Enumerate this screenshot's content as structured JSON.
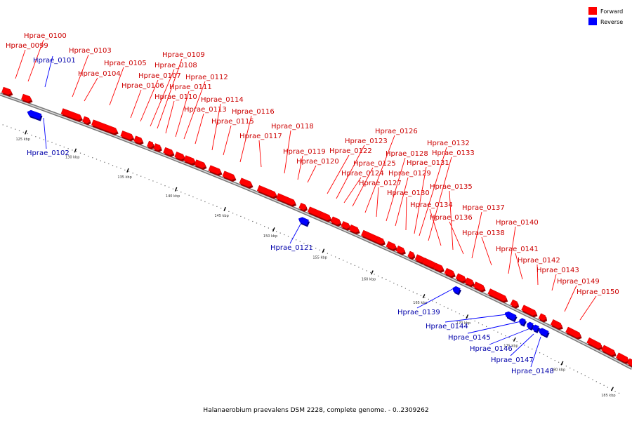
{
  "caption": "Halanaerobium praevalens DSM 2228, complete genome. - 0..2309262",
  "legend": [
    {
      "label": "Forward",
      "color": "#ff0000"
    },
    {
      "label": "Reverse",
      "color": "#0000ff"
    }
  ],
  "colors": {
    "forward": "#ff0000",
    "reverse": "#0000ff",
    "forward_text": "#cc0000",
    "reverse_text": "#0000aa"
  },
  "axis_ticks": [
    "125 kbp",
    "130 kbp",
    "135 kbp",
    "140 kbp",
    "145 kbp",
    "150 kbp",
    "155 kbp",
    "160 kbp",
    "165 kbp",
    "170 kbp",
    "175 kbp",
    "180 kbp",
    "185 kbp"
  ],
  "genes": [
    {
      "name": "Hprae_0099",
      "strand": "forward"
    },
    {
      "name": "Hprae_0100",
      "strand": "forward"
    },
    {
      "name": "Hprae_0101",
      "strand": "reverse"
    },
    {
      "name": "Hprae_0102",
      "strand": "reverse"
    },
    {
      "name": "Hprae_0103",
      "strand": "forward"
    },
    {
      "name": "Hprae_0104",
      "strand": "forward"
    },
    {
      "name": "Hprae_0105",
      "strand": "forward"
    },
    {
      "name": "Hprae_0106",
      "strand": "forward"
    },
    {
      "name": "Hprae_0107",
      "strand": "forward"
    },
    {
      "name": "Hprae_0108",
      "strand": "forward"
    },
    {
      "name": "Hprae_0109",
      "strand": "forward"
    },
    {
      "name": "Hprae_0110",
      "strand": "forward"
    },
    {
      "name": "Hprae_0111",
      "strand": "forward"
    },
    {
      "name": "Hprae_0112",
      "strand": "forward"
    },
    {
      "name": "Hprae_0113",
      "strand": "forward"
    },
    {
      "name": "Hprae_0114",
      "strand": "forward"
    },
    {
      "name": "Hprae_0115",
      "strand": "forward"
    },
    {
      "name": "Hprae_0116",
      "strand": "forward"
    },
    {
      "name": "Hprae_0117",
      "strand": "forward"
    },
    {
      "name": "Hprae_0118",
      "strand": "forward"
    },
    {
      "name": "Hprae_0119",
      "strand": "forward"
    },
    {
      "name": "Hprae_0120",
      "strand": "forward"
    },
    {
      "name": "Hprae_0121",
      "strand": "reverse"
    },
    {
      "name": "Hprae_0122",
      "strand": "forward"
    },
    {
      "name": "Hprae_0123",
      "strand": "forward"
    },
    {
      "name": "Hprae_0124",
      "strand": "forward"
    },
    {
      "name": "Hprae_0125",
      "strand": "forward"
    },
    {
      "name": "Hprae_0126",
      "strand": "forward"
    },
    {
      "name": "Hprae_0127",
      "strand": "forward"
    },
    {
      "name": "Hprae_0128",
      "strand": "forward"
    },
    {
      "name": "Hprae_0129",
      "strand": "forward"
    },
    {
      "name": "Hprae_0130",
      "strand": "forward"
    },
    {
      "name": "Hprae_0131",
      "strand": "forward"
    },
    {
      "name": "Hprae_0132",
      "strand": "forward"
    },
    {
      "name": "Hprae_0133",
      "strand": "forward"
    },
    {
      "name": "Hprae_0134",
      "strand": "forward"
    },
    {
      "name": "Hprae_0135",
      "strand": "forward"
    },
    {
      "name": "Hprae_0136",
      "strand": "forward"
    },
    {
      "name": "Hprae_0137",
      "strand": "forward"
    },
    {
      "name": "Hprae_0138",
      "strand": "forward"
    },
    {
      "name": "Hprae_0139",
      "strand": "reverse"
    },
    {
      "name": "Hprae_0140",
      "strand": "forward"
    },
    {
      "name": "Hprae_0141",
      "strand": "forward"
    },
    {
      "name": "Hprae_0142",
      "strand": "forward"
    },
    {
      "name": "Hprae_0143",
      "strand": "forward"
    },
    {
      "name": "Hprae_0144",
      "strand": "reverse"
    },
    {
      "name": "Hprae_0145",
      "strand": "reverse"
    },
    {
      "name": "Hprae_0146",
      "strand": "reverse"
    },
    {
      "name": "Hprae_0147",
      "strand": "reverse"
    },
    {
      "name": "Hprae_0148",
      "strand": "reverse"
    },
    {
      "name": "Hprae_0149",
      "strand": "forward"
    },
    {
      "name": "Hprae_0150",
      "strand": "forward"
    }
  ]
}
